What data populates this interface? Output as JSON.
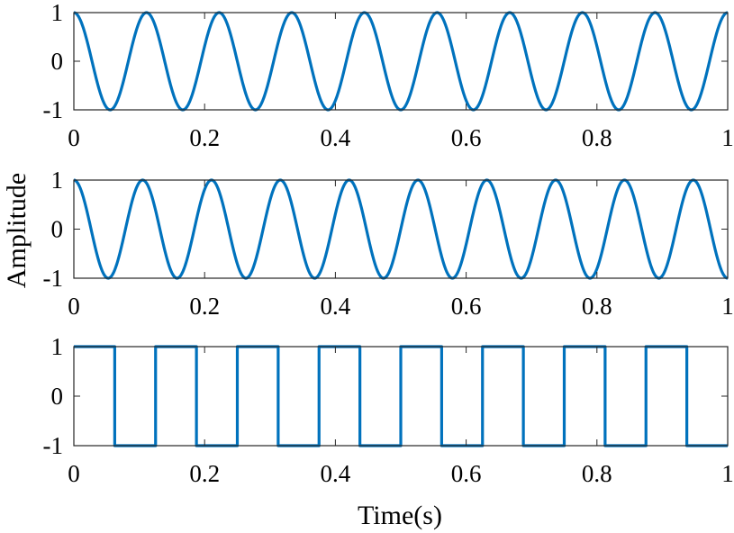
{
  "chart_data": {
    "xlabel": "Time(s)",
    "ylabel": "Amplitude",
    "line_color": "#0072BD",
    "grid": false,
    "legend": "none",
    "subplots": [
      {
        "type": "line",
        "xlim": [
          0,
          1
        ],
        "ylim": [
          -1,
          1
        ],
        "xticks": [
          "0",
          "0.2",
          "0.4",
          "0.6",
          "0.8",
          "1"
        ],
        "yticks": [
          "-1",
          "0",
          "1"
        ],
        "signal": "cosine",
        "amplitude": 1,
        "frequency_hz": 9
      },
      {
        "type": "line",
        "xlim": [
          0,
          1
        ],
        "ylim": [
          -1,
          1
        ],
        "xticks": [
          "0",
          "0.2",
          "0.4",
          "0.6",
          "0.8",
          "1"
        ],
        "yticks": [
          "-1",
          "0",
          "1"
        ],
        "signal": "cosine",
        "amplitude": 1,
        "frequency_hz": 9.5
      },
      {
        "type": "line",
        "xlim": [
          0,
          1
        ],
        "ylim": [
          -1,
          1
        ],
        "xticks": [
          "0",
          "0.2",
          "0.4",
          "0.6",
          "0.8",
          "1"
        ],
        "yticks": [
          "-1",
          "0",
          "1"
        ],
        "signal": "square",
        "x": [
          0,
          0.0625,
          0.0625,
          0.125,
          0.125,
          0.1875,
          0.1875,
          0.25,
          0.25,
          0.3125,
          0.3125,
          0.375,
          0.375,
          0.4375,
          0.4375,
          0.5,
          0.5,
          0.5625,
          0.5625,
          0.625,
          0.625,
          0.6875,
          0.6875,
          0.75,
          0.75,
          0.8125,
          0.8125,
          0.875,
          0.875,
          0.9375,
          0.9375,
          1
        ],
        "y": [
          1,
          1,
          -1,
          -1,
          1,
          1,
          -1,
          -1,
          1,
          1,
          -1,
          -1,
          1,
          1,
          -1,
          -1,
          1,
          1,
          -1,
          -1,
          1,
          1,
          -1,
          -1,
          1,
          1,
          -1,
          -1,
          1,
          1,
          -1,
          -1
        ]
      }
    ]
  }
}
